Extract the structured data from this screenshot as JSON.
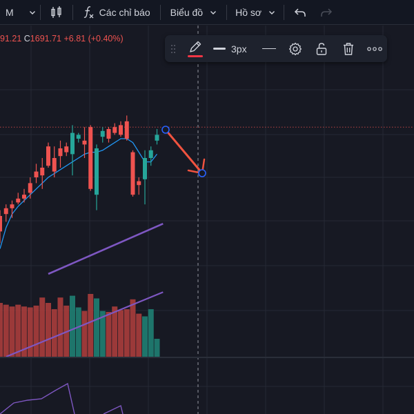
{
  "toolbar": {
    "interval_label": "M",
    "indicators_label": "Các chỉ báo",
    "chart_menu_label": "Biểu đồ",
    "profile_menu_label": "Hồ sơ",
    "icons": {
      "interval_menu": "chevron-down-icon",
      "chart_type": "candlestick-chart-icon",
      "indicators": "function-icon",
      "undo": "undo-icon",
      "redo": "redo-icon"
    },
    "redo_enabled": false
  },
  "legend": {
    "open_partial": "91.21",
    "close_label": "C",
    "close_value": "1691.71",
    "change": "+6.81",
    "change_pct": "(+0.40%)",
    "color": "#ef5350"
  },
  "drawing_toolbar": {
    "stroke_color": "#f23645",
    "line_width_label": "3px",
    "icons": [
      "pencil-icon",
      "line-width-icon",
      "line-style-icon",
      "gear-icon",
      "unlock-icon",
      "trash-icon",
      "more-icon"
    ]
  },
  "colors": {
    "background": "#171923",
    "bullish": "#26a69a",
    "bearish": "#ef5350",
    "ma_fast": "#2196f3",
    "ma_slow": "#7e57c2",
    "trend_line": "#f0533f",
    "trend_handle": "#2962ff",
    "crosshair": "#9598a1"
  },
  "chart_data": {
    "type": "candlestick",
    "candles": [
      {
        "o": 2.0,
        "h": 2.3,
        "l": 0.6,
        "c": 1.2
      },
      {
        "o": 2.4,
        "h": 2.6,
        "l": 1.7,
        "c": 2.1
      },
      {
        "o": 2.6,
        "h": 2.8,
        "l": 1.9,
        "c": 2.4
      },
      {
        "o": 2.9,
        "h": 3.2,
        "l": 2.6,
        "c": 2.7
      },
      {
        "o": 3.1,
        "h": 3.4,
        "l": 2.7,
        "c": 2.9
      },
      {
        "o": 3.7,
        "h": 4.0,
        "l": 2.9,
        "c": 3.2
      },
      {
        "o": 4.3,
        "h": 4.7,
        "l": 3.7,
        "c": 4.0
      },
      {
        "o": 4.5,
        "h": 5.0,
        "l": 3.4,
        "c": 4.1
      },
      {
        "o": 5.6,
        "h": 5.8,
        "l": 4.5,
        "c": 4.6
      },
      {
        "o": 5.0,
        "h": 5.6,
        "l": 4.0,
        "c": 4.3
      },
      {
        "o": 5.5,
        "h": 5.9,
        "l": 4.5,
        "c": 5.1
      },
      {
        "o": 5.6,
        "h": 5.8,
        "l": 5.1,
        "c": 5.3
      },
      {
        "o": 5.2,
        "h": 6.7,
        "l": 4.1,
        "c": 6.3
      },
      {
        "o": 6.0,
        "h": 6.3,
        "l": 5.8,
        "c": 6.2
      },
      {
        "o": 5.9,
        "h": 6.6,
        "l": 5.0,
        "c": 5.7
      },
      {
        "o": 6.6,
        "h": 6.7,
        "l": 3.3,
        "c": 3.4
      },
      {
        "o": 3.1,
        "h": 5.7,
        "l": 2.3,
        "c": 5.5
      },
      {
        "o": 6.1,
        "h": 6.6,
        "l": 5.8,
        "c": 6.4
      },
      {
        "o": 6.5,
        "h": 6.6,
        "l": 5.8,
        "c": 6.0
      },
      {
        "o": 6.6,
        "h": 6.8,
        "l": 6.2,
        "c": 6.3
      },
      {
        "o": 6.7,
        "h": 6.9,
        "l": 6.1,
        "c": 6.2
      },
      {
        "o": 6.9,
        "h": 7.2,
        "l": 5.9,
        "c": 6.0
      },
      {
        "o": 5.3,
        "h": 5.4,
        "l": 3.0,
        "c": 3.1
      },
      {
        "o": 3.8,
        "h": 4.0,
        "l": 3.1,
        "c": 3.6
      },
      {
        "o": 3.9,
        "h": 5.4,
        "l": 2.6,
        "c": 5.0
      },
      {
        "o": 5.0,
        "h": 5.6,
        "l": 4.6,
        "c": 5.4
      },
      {
        "o": 5.9,
        "h": 6.5,
        "l": 5.7,
        "c": 6.2
      }
    ],
    "volumes": [
      60,
      58,
      56,
      58,
      56,
      55,
      57,
      66,
      60,
      53,
      66,
      57,
      68,
      55,
      51,
      70,
      65,
      51,
      50,
      56,
      52,
      53,
      64,
      48,
      45,
      53,
      20
    ],
    "ma_fast": [
      0.3,
      1.4,
      2.1,
      2.5,
      2.8,
      3.1,
      3.4,
      3.7,
      4.0,
      4.2,
      4.4,
      4.6,
      4.8,
      5.0,
      5.2,
      5.3,
      5.3,
      5.4,
      5.6,
      5.8,
      6.0,
      6.0,
      5.8,
      5.3,
      4.8,
      4.8,
      5.2
    ],
    "ma_slow_line": [
      [
        8,
        -1.0
      ],
      [
        27,
        1.6
      ]
    ],
    "volume_ma_line": [
      [
        1,
        0
      ],
      [
        27,
        72
      ]
    ],
    "reference_level": 6.6
  }
}
